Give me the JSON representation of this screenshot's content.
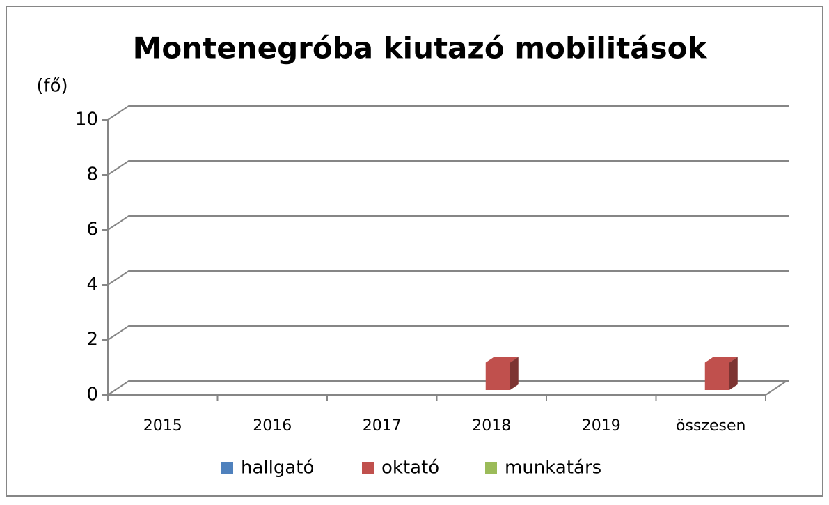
{
  "chart_data": {
    "type": "bar3d",
    "title": "Montenegróba kiutazó mobilitások",
    "y_label": "(fő)",
    "categories": [
      "2015",
      "2016",
      "2017",
      "2018",
      "2019",
      "összesen"
    ],
    "series": [
      {
        "name": "hallgató",
        "color": "#4f81bd",
        "values": [
          0,
          0,
          0,
          0,
          0,
          0
        ]
      },
      {
        "name": "oktató",
        "color": "#c0504d",
        "values": [
          0,
          0,
          0,
          1,
          0,
          1
        ]
      },
      {
        "name": "munkatárs",
        "color": "#9bbb59",
        "values": [
          0,
          0,
          0,
          0,
          0,
          0
        ]
      }
    ],
    "ylim": [
      0,
      10
    ],
    "yticks": [
      0,
      2,
      4,
      6,
      8,
      10
    ],
    "grid": true,
    "legend": "bottom"
  }
}
